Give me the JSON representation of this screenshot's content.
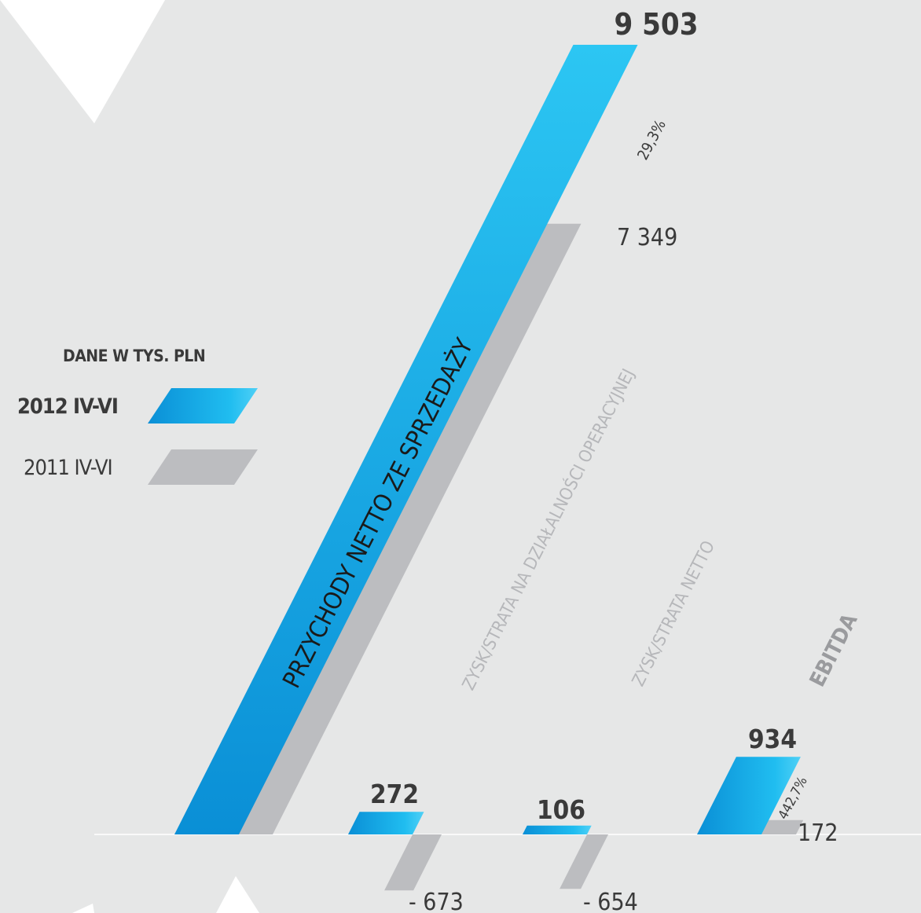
{
  "legend": {
    "unit_label": "DANE W TYS. PLN",
    "current_label": "2012 IV-VI",
    "previous_label": "2011 IV-VI"
  },
  "colors": {
    "current": "#12a4e2",
    "current_light": "#2cc6f3",
    "current_dark": "#0a8fd6",
    "previous": "#bcbdc0",
    "background": "#e6e7e7",
    "text_dark": "#3a3a3a",
    "category_label_light": "#b6b7ba",
    "category_label_dark": "#9a9b9e"
  },
  "chart_data": {
    "type": "bar",
    "categories": [
      "PRZYCHODY NETTO ZE SPRZEDAŻY",
      "ZYSK/STRATA NA DZIAŁALNOŚCI OPERACYJNEJ",
      "ZYSK/STRATA NETTO",
      "EBITDA"
    ],
    "series": [
      {
        "name": "2012 IV-VI",
        "values": [
          9503,
          272,
          106,
          934
        ]
      },
      {
        "name": "2011 IV-VI",
        "values": [
          7349,
          -673,
          -654,
          172
        ]
      }
    ],
    "value_labels": {
      "2012 IV-VI": [
        "9 503",
        "272",
        "106",
        "934"
      ],
      "2011 IV-VI": [
        "7 349",
        "- 673",
        "- 654",
        "172"
      ]
    },
    "change_labels": [
      "29,3%",
      "",
      "",
      "442,7%"
    ]
  }
}
